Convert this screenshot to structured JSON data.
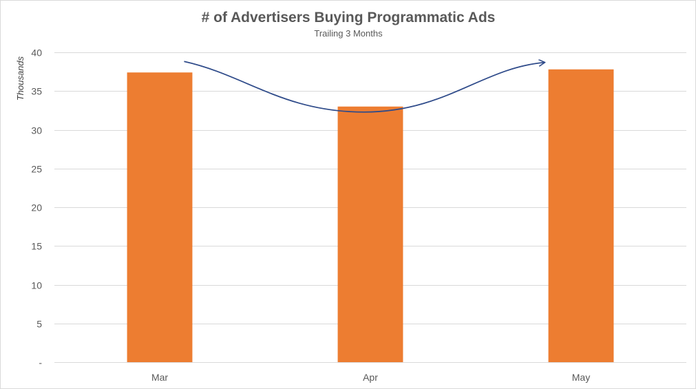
{
  "chart_data": {
    "type": "bar",
    "title": "# of Advertisers Buying Programmatic Ads",
    "subtitle": "Trailing 3 Months",
    "xlabel": "",
    "ylabel": "Thousands",
    "categories": [
      "Mar",
      "Apr",
      "May"
    ],
    "values": [
      37.4,
      33.0,
      37.8
    ],
    "ylim": [
      0,
      40
    ],
    "yticks": [
      0,
      5,
      10,
      15,
      20,
      25,
      30,
      35,
      40
    ],
    "ytick_labels": [
      "-",
      "5",
      "10",
      "15",
      "20",
      "25",
      "30",
      "35",
      "40"
    ],
    "grid": true,
    "legend": "none",
    "colors": {
      "bar": "#ED7D31",
      "trend_arrow": "#2F4B8A",
      "gridline": "#D9D9D9",
      "text": "#595959"
    },
    "annotations": [
      {
        "type": "curved-arrow",
        "from_category": "Mar",
        "to_category": "May",
        "meaning": "trend"
      }
    ]
  }
}
